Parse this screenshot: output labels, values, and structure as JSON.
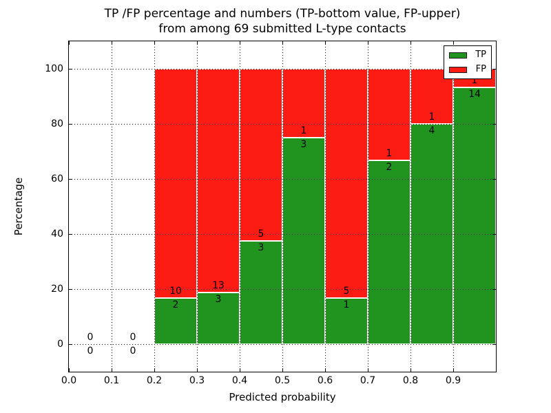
{
  "title": {
    "line1": "TP /FP percentage and numbers (TP-bottom value, FP-upper)",
    "line2": "from among 69 submitted L-type contacts"
  },
  "axes": {
    "xlabel": "Predicted probability",
    "ylabel": "Percentage",
    "x_ticks": [
      "0.0",
      "0.1",
      "0.2",
      "0.3",
      "0.4",
      "0.5",
      "0.6",
      "0.7",
      "0.8",
      "0.9"
    ],
    "y_ticks": [
      "0",
      "20",
      "40",
      "60",
      "80",
      "100"
    ]
  },
  "legend": {
    "position": "upper right",
    "items": [
      {
        "label": "TP",
        "color": "#20941f"
      },
      {
        "label": "FP",
        "color": "#fd1c13"
      }
    ]
  },
  "chart_data": {
    "type": "bar",
    "stacked": true,
    "normalized_to_percent": true,
    "title": "TP /FP percentage and numbers (TP-bottom value, FP-upper) from among 69 submitted L-type contacts",
    "xlabel": "Predicted probability",
    "ylabel": "Percentage",
    "xlim": [
      0.0,
      1.0
    ],
    "ylim": [
      -10,
      110
    ],
    "grid": "dotted",
    "legend_position": "upper right",
    "total_submitted": 69,
    "bin_width": 0.1,
    "series": [
      {
        "name": "TP",
        "color": "#20941f",
        "position": "bottom"
      },
      {
        "name": "FP",
        "color": "#fd1c13",
        "position": "top"
      }
    ],
    "bins": [
      {
        "x_start": 0.0,
        "x_end": 0.1,
        "tp": 0,
        "fp": 0
      },
      {
        "x_start": 0.1,
        "x_end": 0.2,
        "tp": 0,
        "fp": 0
      },
      {
        "x_start": 0.2,
        "x_end": 0.3,
        "tp": 2,
        "fp": 10
      },
      {
        "x_start": 0.3,
        "x_end": 0.4,
        "tp": 3,
        "fp": 13
      },
      {
        "x_start": 0.4,
        "x_end": 0.5,
        "tp": 3,
        "fp": 5
      },
      {
        "x_start": 0.5,
        "x_end": 0.6,
        "tp": 3,
        "fp": 1
      },
      {
        "x_start": 0.6,
        "x_end": 0.7,
        "tp": 1,
        "fp": 5
      },
      {
        "x_start": 0.7,
        "x_end": 0.8,
        "tp": 2,
        "fp": 1
      },
      {
        "x_start": 0.8,
        "x_end": 0.9,
        "tp": 4,
        "fp": 1
      },
      {
        "x_start": 0.9,
        "x_end": 1.0,
        "tp": 14,
        "fp": 1
      }
    ]
  }
}
